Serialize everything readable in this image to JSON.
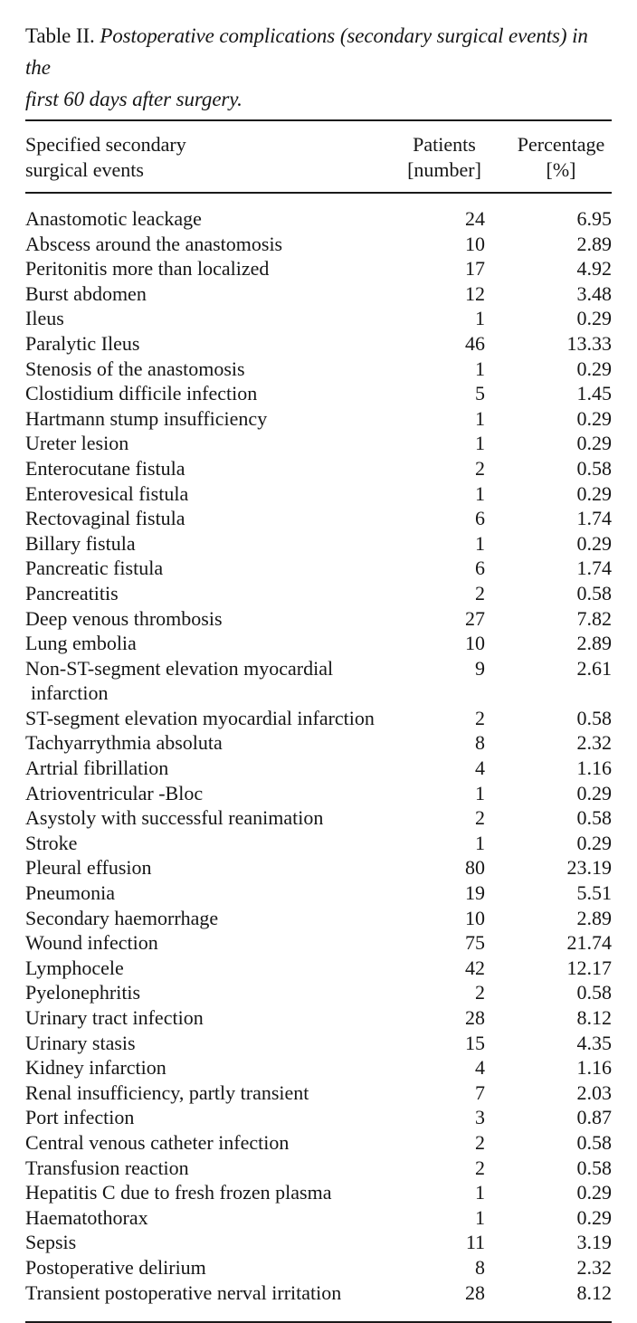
{
  "title": {
    "label": "Table II.",
    "caption_line1": "Postoperative complications (secondary surgical events) in the",
    "caption_line2": "first 60 days after surgery."
  },
  "table": {
    "columns": [
      {
        "id": "events",
        "label_line1": "Specified secondary",
        "label_line2": "surgical events"
      },
      {
        "id": "patients",
        "label_line1": "Patients",
        "label_line2": "[number]"
      },
      {
        "id": "percentage",
        "label_line1": "Percentage",
        "label_line2": "[%]"
      }
    ],
    "rows": [
      {
        "event": "Anastomotic leackage",
        "event_line2": null,
        "patients": "24",
        "percentage": "6.95"
      },
      {
        "event": "Abscess around the anastomosis",
        "event_line2": null,
        "patients": "10",
        "percentage": "2.89"
      },
      {
        "event": "Peritonitis more than localized",
        "event_line2": null,
        "patients": "17",
        "percentage": "4.92"
      },
      {
        "event": "Burst abdomen",
        "event_line2": null,
        "patients": "12",
        "percentage": "3.48"
      },
      {
        "event": "Ileus",
        "event_line2": null,
        "patients": "1",
        "percentage": "0.29"
      },
      {
        "event": "Paralytic Ileus",
        "event_line2": null,
        "patients": "46",
        "percentage": "13.33"
      },
      {
        "event": "Stenosis of the anastomosis",
        "event_line2": null,
        "patients": "1",
        "percentage": "0.29"
      },
      {
        "event": "Clostidium difficile infection",
        "event_line2": null,
        "patients": "5",
        "percentage": "1.45"
      },
      {
        "event": "Hartmann stump insufficiency",
        "event_line2": null,
        "patients": "1",
        "percentage": "0.29"
      },
      {
        "event": "Ureter lesion",
        "event_line2": null,
        "patients": "1",
        "percentage": "0.29"
      },
      {
        "event": "Enterocutane fistula",
        "event_line2": null,
        "patients": "2",
        "percentage": "0.58"
      },
      {
        "event": "Enterovesical fistula",
        "event_line2": null,
        "patients": "1",
        "percentage": "0.29"
      },
      {
        "event": "Rectovaginal fistula",
        "event_line2": null,
        "patients": "6",
        "percentage": "1.74"
      },
      {
        "event": "Billary fistula",
        "event_line2": null,
        "patients": "1",
        "percentage": "0.29"
      },
      {
        "event": "Pancreatic fistula",
        "event_line2": null,
        "patients": "6",
        "percentage": "1.74"
      },
      {
        "event": "Pancreatitis",
        "event_line2": null,
        "patients": "2",
        "percentage": "0.58"
      },
      {
        "event": "Deep venous thrombosis",
        "event_line2": null,
        "patients": "27",
        "percentage": "7.82"
      },
      {
        "event": "Lung embolia",
        "event_line2": null,
        "patients": "10",
        "percentage": "2.89"
      },
      {
        "event": "Non-ST-segment elevation myocardial",
        "event_line2": "infarction",
        "patients": "9",
        "percentage": "2.61"
      },
      {
        "event": "ST-segment elevation myocardial infarction",
        "event_line2": null,
        "patients": "2",
        "percentage": "0.58"
      },
      {
        "event": "Tachyarrythmia absoluta",
        "event_line2": null,
        "patients": "8",
        "percentage": "2.32"
      },
      {
        "event": "Artrial fibrillation",
        "event_line2": null,
        "patients": "4",
        "percentage": "1.16"
      },
      {
        "event": "Atrioventricular -Bloc",
        "event_line2": null,
        "patients": "1",
        "percentage": "0.29"
      },
      {
        "event": "Asystoly with successful reanimation",
        "event_line2": null,
        "patients": "2",
        "percentage": "0.58"
      },
      {
        "event": "Stroke",
        "event_line2": null,
        "patients": "1",
        "percentage": "0.29"
      },
      {
        "event": "Pleural effusion",
        "event_line2": null,
        "patients": "80",
        "percentage": "23.19"
      },
      {
        "event": "Pneumonia",
        "event_line2": null,
        "patients": "19",
        "percentage": "5.51"
      },
      {
        "event": "Secondary haemorrhage",
        "event_line2": null,
        "patients": "10",
        "percentage": "2.89"
      },
      {
        "event": "Wound infection",
        "event_line2": null,
        "patients": "75",
        "percentage": "21.74"
      },
      {
        "event": "Lymphocele",
        "event_line2": null,
        "patients": "42",
        "percentage": "12.17"
      },
      {
        "event": "Pyelonephritis",
        "event_line2": null,
        "patients": "2",
        "percentage": "0.58"
      },
      {
        "event": "Urinary tract infection",
        "event_line2": null,
        "patients": "28",
        "percentage": "8.12"
      },
      {
        "event": "Urinary stasis",
        "event_line2": null,
        "patients": "15",
        "percentage": "4.35"
      },
      {
        "event": "Kidney infarction",
        "event_line2": null,
        "patients": "4",
        "percentage": "1.16"
      },
      {
        "event": "Renal insufficiency, partly transient",
        "event_line2": null,
        "patients": "7",
        "percentage": "2.03"
      },
      {
        "event": "Port infection",
        "event_line2": null,
        "patients": "3",
        "percentage": "0.87"
      },
      {
        "event": "Central venous catheter infection",
        "event_line2": null,
        "patients": "2",
        "percentage": "0.58"
      },
      {
        "event": "Transfusion reaction",
        "event_line2": null,
        "patients": "2",
        "percentage": "0.58"
      },
      {
        "event": "Hepatitis C due to fresh frozen plasma",
        "event_line2": null,
        "patients": "1",
        "percentage": "0.29"
      },
      {
        "event": "Haematothorax",
        "event_line2": null,
        "patients": "1",
        "percentage": "0.29"
      },
      {
        "event": "Sepsis",
        "event_line2": null,
        "patients": "11",
        "percentage": "3.19"
      },
      {
        "event": "Postoperative delirium",
        "event_line2": null,
        "patients": "8",
        "percentage": "2.32"
      },
      {
        "event": "Transient postoperative nerval irritation",
        "event_line2": null,
        "patients": "28",
        "percentage": "8.12"
      }
    ]
  }
}
